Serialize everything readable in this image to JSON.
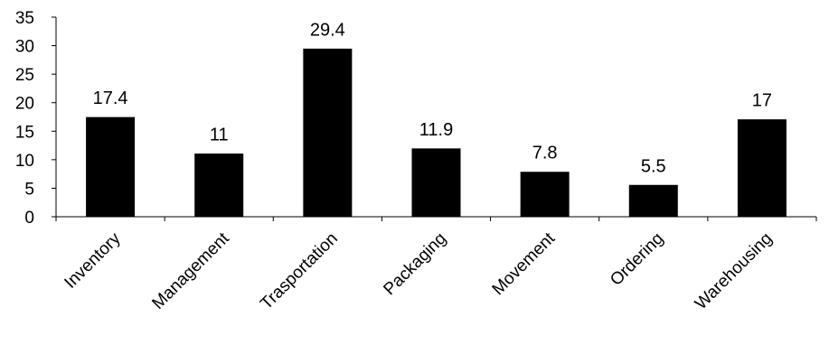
{
  "chart_data": {
    "type": "bar",
    "title": "",
    "xlabel": "",
    "ylabel": "",
    "categories": [
      "Inventory",
      "Management",
      "Trasportation",
      "Packaging",
      "Movement",
      "Ordering",
      "Warehousing"
    ],
    "values": [
      17.4,
      11,
      29.4,
      11.9,
      7.8,
      5.5,
      17
    ],
    "value_labels": [
      "17.4",
      "11",
      "29.4",
      "11.9",
      "7.8",
      "5.5",
      "17"
    ],
    "ylim": [
      0,
      35
    ],
    "yticks": [
      "0",
      "5",
      "10",
      "15",
      "20",
      "25",
      "30",
      "35"
    ],
    "grid": false,
    "legend": "none",
    "bar_color": "#000000"
  }
}
